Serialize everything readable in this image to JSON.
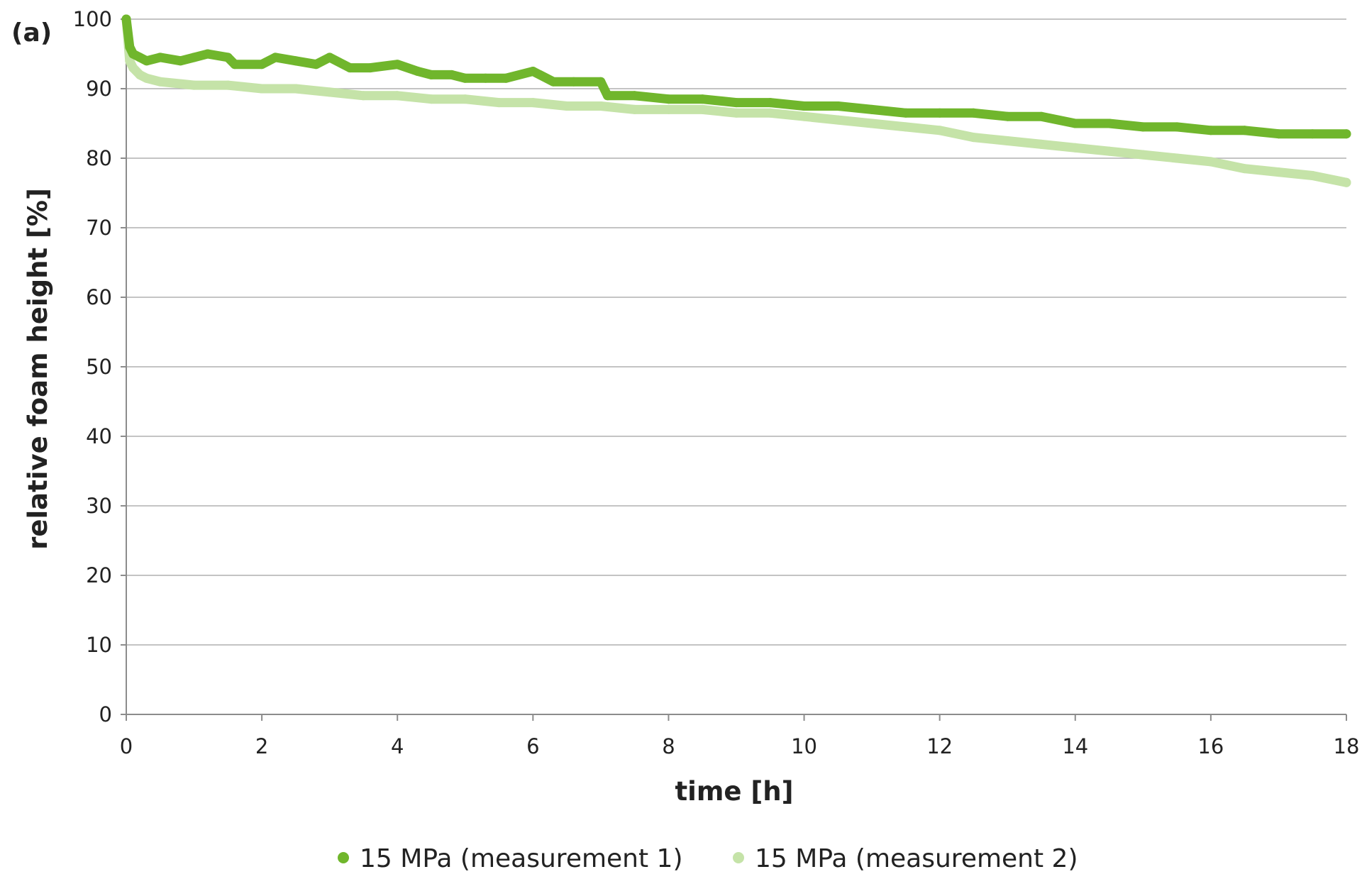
{
  "chart_data": {
    "type": "scatter",
    "panel_label": "(a)",
    "xlabel": "time [h]",
    "ylabel": "relative foam height [%]",
    "xlim": [
      0,
      18
    ],
    "ylim": [
      0,
      100
    ],
    "xticks": [
      "0",
      "2",
      "4",
      "6",
      "8",
      "10",
      "12",
      "14",
      "16",
      "18"
    ],
    "yticks": [
      "0",
      "10",
      "20",
      "30",
      "40",
      "50",
      "60",
      "70",
      "80",
      "90",
      "100"
    ],
    "grid": "horizontal",
    "legend_position": "bottom",
    "series": [
      {
        "name": "15 MPa (measurement 1)",
        "color": "#70b62c",
        "x": [
          0,
          0.05,
          0.1,
          0.2,
          0.3,
          0.5,
          0.8,
          1.0,
          1.2,
          1.5,
          1.6,
          2.0,
          2.2,
          2.5,
          2.8,
          3.0,
          3.3,
          3.6,
          4.0,
          4.3,
          4.5,
          4.8,
          5.0,
          5.3,
          5.6,
          6.0,
          6.3,
          6.6,
          7.0,
          7.1,
          7.5,
          8.0,
          8.5,
          9.0,
          9.5,
          10.0,
          10.5,
          11.0,
          11.5,
          12.0,
          12.5,
          13.0,
          13.5,
          14.0,
          14.5,
          15.0,
          15.5,
          16.0,
          16.5,
          17.0,
          17.5,
          18.0
        ],
        "y": [
          100,
          96,
          95,
          94.5,
          94,
          94.5,
          94,
          94.5,
          95,
          94.5,
          93.5,
          93.5,
          94.5,
          94,
          93.5,
          94.5,
          93,
          93,
          93.5,
          92.5,
          92,
          92,
          91.5,
          91.5,
          91.5,
          92.5,
          91,
          91,
          91,
          89,
          89,
          88.5,
          88.5,
          88,
          88,
          87.5,
          87.5,
          87,
          86.5,
          86.5,
          86.5,
          86,
          86,
          85,
          85,
          84.5,
          84.5,
          84,
          84,
          83.5,
          83.5,
          83.5
        ]
      },
      {
        "name": "15 MPa (measurement 2)",
        "color": "#c5e3a8",
        "x": [
          0,
          0.05,
          0.1,
          0.2,
          0.3,
          0.5,
          1.0,
          1.5,
          2.0,
          2.5,
          3.0,
          3.5,
          4.0,
          4.5,
          5.0,
          5.5,
          6.0,
          6.5,
          7.0,
          7.5,
          8.0,
          8.5,
          9.0,
          9.5,
          10.0,
          10.5,
          11.0,
          11.5,
          12.0,
          12.5,
          13.0,
          13.5,
          14.0,
          14.5,
          15.0,
          15.5,
          16.0,
          16.5,
          17.0,
          17.5,
          18.0
        ],
        "y": [
          100,
          94,
          93,
          92,
          91.5,
          91,
          90.5,
          90.5,
          90,
          90,
          89.5,
          89,
          89,
          88.5,
          88.5,
          88,
          88,
          87.5,
          87.5,
          87,
          87,
          87,
          86.5,
          86.5,
          86,
          85.5,
          85,
          84.5,
          84,
          83,
          82.5,
          82,
          81.5,
          81,
          80.5,
          80,
          79.5,
          78.5,
          78,
          77.5,
          76.5
        ]
      }
    ]
  }
}
